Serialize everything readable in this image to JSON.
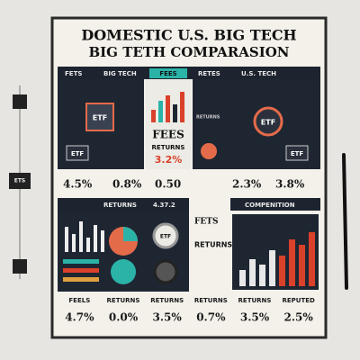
{
  "header": {
    "title_line1": "DOMESTIC U.S. BIG TECH",
    "title_line2": "BIG TETH COMPARASION"
  },
  "side_label": "ETS",
  "top": {
    "headers": [
      "FETS",
      "BIG TECH",
      "FEES",
      "RETES",
      "U.S. TECH"
    ],
    "left_chip": "ETF",
    "left_tag": "ETF",
    "middle": {
      "title": "FEES",
      "label": "RETURNS",
      "value": "3.2%"
    },
    "right_chip": "ETF",
    "right_label": "RETURNS",
    "right_tag": "ETF",
    "stats": [
      "4.5%",
      "0.8%",
      "0.50",
      "2.3%",
      "3.8%"
    ]
  },
  "bottom": {
    "headers": [
      "RETURNS",
      "4.37.2",
      "COMPENITION"
    ],
    "gauge": "ETF",
    "right_title": "FETS",
    "right_label": "RETURNS",
    "labels": [
      "FEELS",
      "RETURNS",
      "RETURNS",
      "RETURNS",
      "RETURNS",
      "REPUTED"
    ],
    "values": [
      "4.7%",
      "0.0%",
      "3.5%",
      "0.7%",
      "3.5%",
      "2.5%"
    ]
  }
}
